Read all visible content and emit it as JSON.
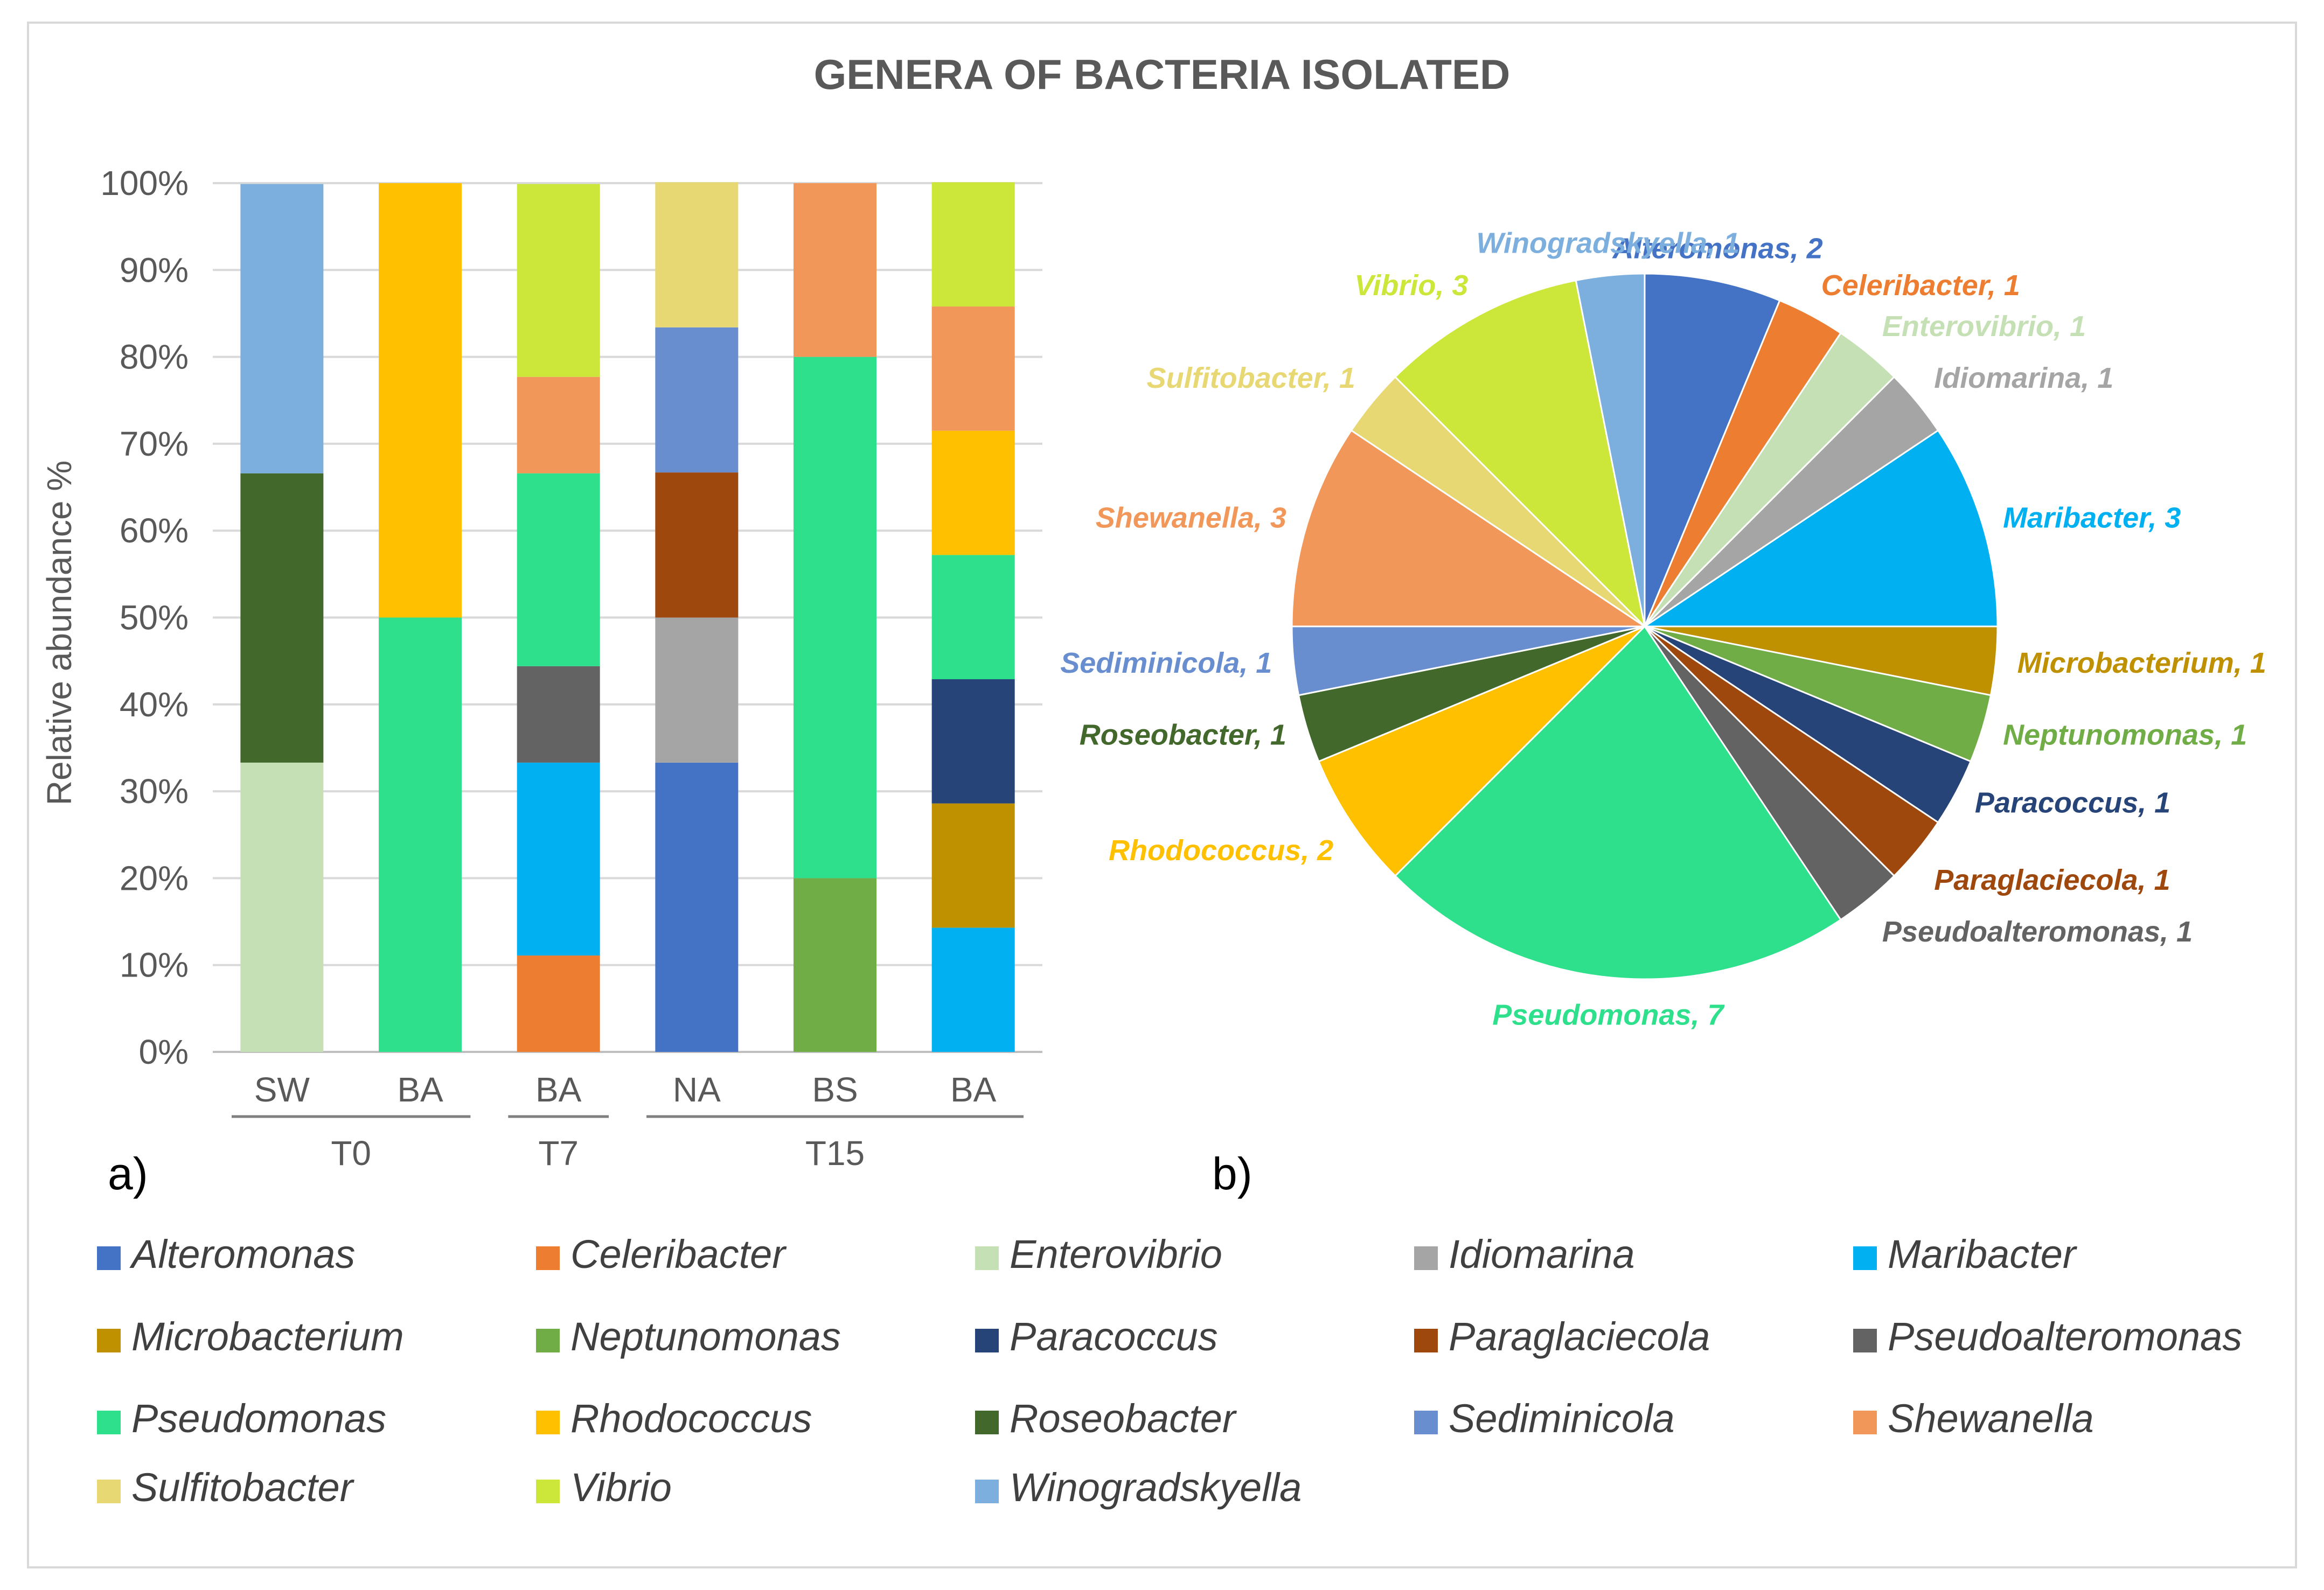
{
  "chart_data": [
    {
      "type": "bar",
      "stacked": true,
      "title": "GENERA OF BACTERIA ISOLATED",
      "panel_label": "a)",
      "xlabel": "",
      "ylabel": "Relative abundance %",
      "ylim": [
        0,
        100
      ],
      "y_ticks": [
        "0%",
        "10%",
        "20%",
        "30%",
        "40%",
        "50%",
        "60%",
        "70%",
        "80%",
        "90%",
        "100%"
      ],
      "categories": [
        "SW",
        "BA",
        "BA",
        "NA",
        "BS",
        "BA"
      ],
      "groups": [
        {
          "label": "T0",
          "categories": [
            0,
            1
          ]
        },
        {
          "label": "T7",
          "categories": [
            2,
            2
          ]
        },
        {
          "label": "T15",
          "categories": [
            3,
            5
          ]
        }
      ],
      "series": [
        {
          "name": "Alteromonas",
          "values": [
            0,
            0,
            0,
            33.3,
            0,
            0
          ]
        },
        {
          "name": "Celeribacter",
          "values": [
            0,
            0,
            11.1,
            0,
            0,
            0
          ]
        },
        {
          "name": "Enterovibrio",
          "values": [
            33.3,
            0,
            0,
            0,
            0,
            0
          ]
        },
        {
          "name": "Idiomarina",
          "values": [
            0,
            0,
            0,
            16.7,
            0,
            0
          ]
        },
        {
          "name": "Maribacter",
          "values": [
            0,
            0,
            22.2,
            0,
            0,
            14.3
          ]
        },
        {
          "name": "Microbacterium",
          "values": [
            0,
            0,
            0,
            0,
            0,
            14.3
          ]
        },
        {
          "name": "Neptunomonas",
          "values": [
            0,
            0,
            0,
            0,
            20,
            0
          ]
        },
        {
          "name": "Paracoccus",
          "values": [
            0,
            0,
            0,
            0,
            0,
            14.3
          ]
        },
        {
          "name": "Paraglaciecola",
          "values": [
            0,
            0,
            0,
            16.7,
            0,
            0
          ]
        },
        {
          "name": "Pseudoalteromonas",
          "values": [
            0,
            0,
            11.1,
            0,
            0,
            0
          ]
        },
        {
          "name": "Pseudomonas",
          "values": [
            0,
            50,
            22.2,
            0,
            60,
            14.3
          ]
        },
        {
          "name": "Rhodococcus",
          "values": [
            0,
            50,
            0,
            0,
            0,
            14.3
          ]
        },
        {
          "name": "Roseobacter",
          "values": [
            33.3,
            0,
            0,
            0,
            0,
            0
          ]
        },
        {
          "name": "Sediminicola",
          "values": [
            0,
            0,
            0,
            16.7,
            0,
            0
          ]
        },
        {
          "name": "Shewanella",
          "values": [
            0,
            0,
            11.1,
            0,
            20,
            14.3
          ]
        },
        {
          "name": "Sulfitobacter",
          "values": [
            0,
            0,
            0,
            16.7,
            0,
            0
          ]
        },
        {
          "name": "Vibrio",
          "values": [
            0,
            0,
            22.2,
            0,
            0,
            14.3
          ]
        },
        {
          "name": "Winogradskyella",
          "values": [
            33.3,
            0,
            0,
            0,
            0,
            0
          ]
        }
      ]
    },
    {
      "type": "pie",
      "panel_label": "b)",
      "slices": [
        {
          "name": "Alteromonas",
          "value": 2,
          "label": "Alteromonas, 2"
        },
        {
          "name": "Celeribacter",
          "value": 1,
          "label": "Celeribacter, 1"
        },
        {
          "name": "Enterovibrio",
          "value": 1,
          "label": "Enterovibrio, 1"
        },
        {
          "name": "Idiomarina",
          "value": 1,
          "label": "Idiomarina, 1"
        },
        {
          "name": "Maribacter",
          "value": 3,
          "label": "Maribacter, 3"
        },
        {
          "name": "Microbacterium",
          "value": 1,
          "label": "Microbacterium, 1"
        },
        {
          "name": "Neptunomonas",
          "value": 1,
          "label": "Neptunomonas, 1"
        },
        {
          "name": "Paracoccus",
          "value": 1,
          "label": "Paracoccus, 1"
        },
        {
          "name": "Paraglaciecola",
          "value": 1,
          "label": "Paraglaciecola, 1"
        },
        {
          "name": "Pseudoalteromonas",
          "value": 1,
          "label": "Pseudoalteromonas, 1"
        },
        {
          "name": "Pseudomonas",
          "value": 7,
          "label": "Pseudomonas, 7"
        },
        {
          "name": "Rhodococcus",
          "value": 2,
          "label": "Rhodococcus, 2"
        },
        {
          "name": "Roseobacter",
          "value": 1,
          "label": "Roseobacter, 1"
        },
        {
          "name": "Sediminicola",
          "value": 1,
          "label": "Sediminicola, 1"
        },
        {
          "name": "Shewanella",
          "value": 3,
          "label": "Shewanella, 3"
        },
        {
          "name": "Sulfitobacter",
          "value": 1,
          "label": "Sulfitobacter, 1"
        },
        {
          "name": "Vibrio",
          "value": 3,
          "label": "Vibrio, 3"
        },
        {
          "name": "Winogradskyella",
          "value": 1,
          "label": "Winogradskyella, 1"
        }
      ]
    }
  ],
  "legend": [
    {
      "name": "Alteromonas",
      "color": "#4472C4"
    },
    {
      "name": "Celeribacter",
      "color": "#ED7D31"
    },
    {
      "name": "Enterovibrio",
      "color": "#C5E0B4"
    },
    {
      "name": "Idiomarina",
      "color": "#A5A5A5"
    },
    {
      "name": "Maribacter",
      "color": "#00B0F0"
    },
    {
      "name": "Microbacterium",
      "color": "#BF9000"
    },
    {
      "name": "Neptunomonas",
      "color": "#70AD47"
    },
    {
      "name": "Paracoccus",
      "color": "#264478"
    },
    {
      "name": "Paraglaciecola",
      "color": "#9E480E"
    },
    {
      "name": "Pseudoalteromonas",
      "color": "#636363"
    },
    {
      "name": "Pseudomonas",
      "color": "#2EE08C"
    },
    {
      "name": "Rhodococcus",
      "color": "#FFC000"
    },
    {
      "name": "Roseobacter",
      "color": "#43682B"
    },
    {
      "name": "Sediminicola",
      "color": "#698ED0"
    },
    {
      "name": "Shewanella",
      "color": "#F1975A"
    },
    {
      "name": "Sulfitobacter",
      "color": "#E8D874"
    },
    {
      "name": "Vibrio",
      "color": "#CDE63A"
    },
    {
      "name": "Winogradskyella",
      "color": "#7CAFDD"
    }
  ]
}
